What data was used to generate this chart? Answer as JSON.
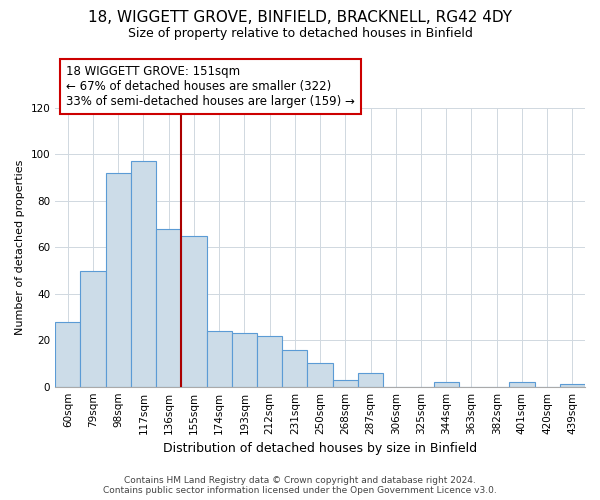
{
  "title": "18, WIGGETT GROVE, BINFIELD, BRACKNELL, RG42 4DY",
  "subtitle": "Size of property relative to detached houses in Binfield",
  "xlabel": "Distribution of detached houses by size in Binfield",
  "ylabel": "Number of detached properties",
  "bar_labels": [
    "60sqm",
    "79sqm",
    "98sqm",
    "117sqm",
    "136sqm",
    "155sqm",
    "174sqm",
    "193sqm",
    "212sqm",
    "231sqm",
    "250sqm",
    "268sqm",
    "287sqm",
    "306sqm",
    "325sqm",
    "344sqm",
    "363sqm",
    "382sqm",
    "401sqm",
    "420sqm",
    "439sqm"
  ],
  "bar_values": [
    28,
    50,
    92,
    97,
    68,
    65,
    24,
    23,
    22,
    16,
    10,
    3,
    6,
    0,
    0,
    2,
    0,
    0,
    2,
    0,
    1
  ],
  "bar_color": "#ccdce8",
  "bar_edge_color": "#5b9bd5",
  "ylim": [
    0,
    120
  ],
  "yticks": [
    0,
    20,
    40,
    60,
    80,
    100,
    120
  ],
  "marker_line_index": 5,
  "annotation_title": "18 WIGGETT GROVE: 151sqm",
  "annotation_line1": "← 67% of detached houses are smaller (322)",
  "annotation_line2": "33% of semi-detached houses are larger (159) →",
  "footer_line1": "Contains HM Land Registry data © Crown copyright and database right 2024.",
  "footer_line2": "Contains public sector information licensed under the Open Government Licence v3.0.",
  "grid_color": "#d0d8e0",
  "title_fontsize": 11,
  "subtitle_fontsize": 9,
  "annotation_fontsize": 8.5,
  "xlabel_fontsize": 9,
  "ylabel_fontsize": 8,
  "tick_fontsize": 7.5,
  "footer_fontsize": 6.5
}
